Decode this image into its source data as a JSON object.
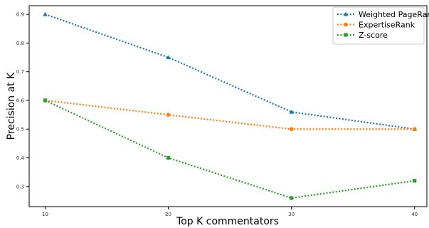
{
  "chart_data": {
    "type": "line",
    "title": "",
    "xlabel": "Top K commentators",
    "ylabel": "Precision at K",
    "x": [
      10,
      20,
      30,
      40
    ],
    "x_ticks": [
      10,
      20,
      30,
      40
    ],
    "y_ticks": [
      0.3,
      0.4,
      0.5,
      0.6,
      0.7,
      0.8,
      0.9
    ],
    "xlim": [
      8.7,
      41
    ],
    "ylim": [
      0.23,
      0.93
    ],
    "grid": false,
    "legend_position": "top-right",
    "series": [
      {
        "name": "Weighted PageRank",
        "values": [
          0.9,
          0.75,
          0.56,
          0.5
        ],
        "color": "#1f77b4",
        "marker": "triangle",
        "line_style": "dotted"
      },
      {
        "name": "ExpertiseRank",
        "values": [
          0.6,
          0.55,
          0.5,
          0.5
        ],
        "color": "#ff7f0e",
        "marker": "circle",
        "line_style": "dotted"
      },
      {
        "name": "Z-score",
        "values": [
          0.6,
          0.4,
          0.26,
          0.32
        ],
        "color": "#2ca02c",
        "marker": "square",
        "line_style": "dotted"
      }
    ]
  }
}
